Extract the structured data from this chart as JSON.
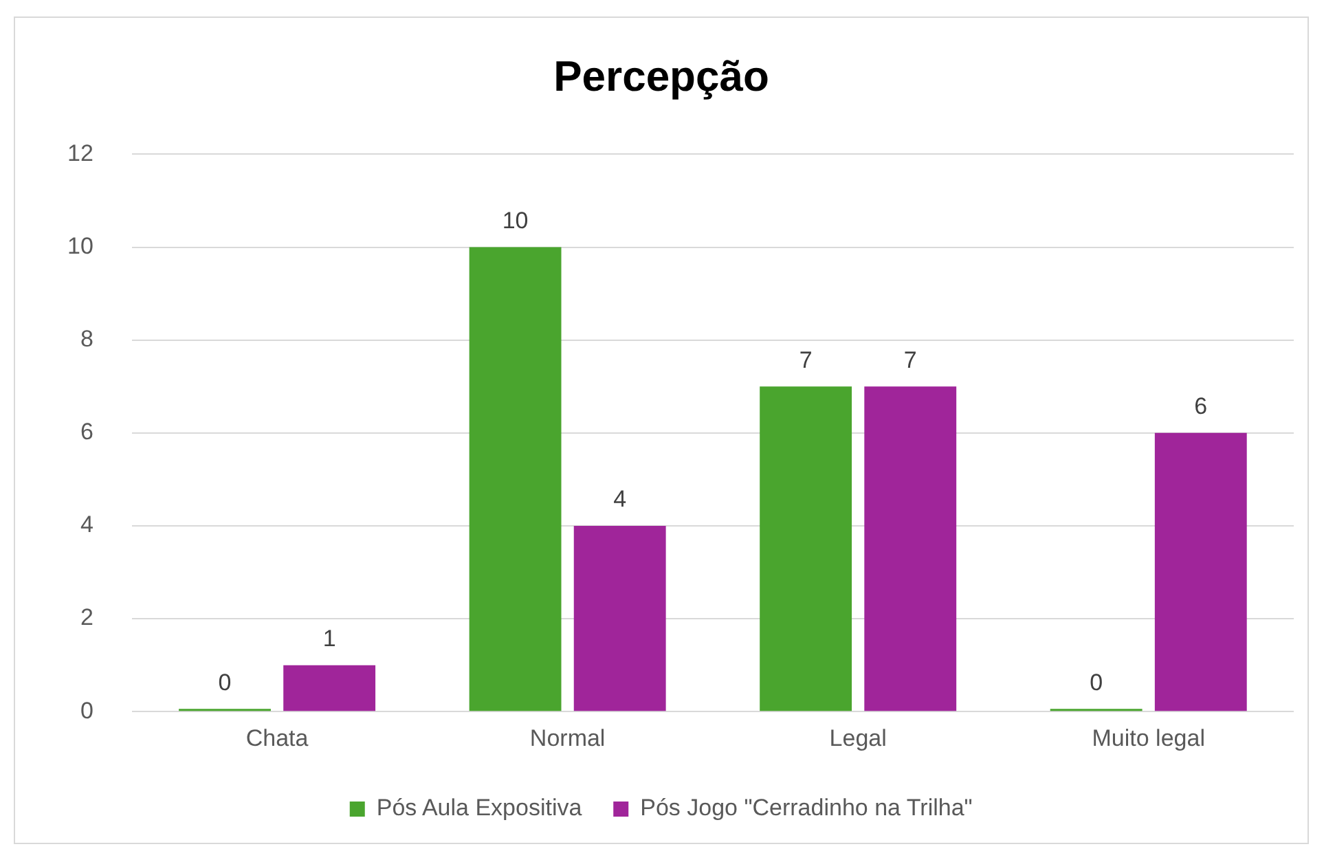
{
  "chart_data": {
    "type": "bar",
    "title": "Percepção",
    "categories": [
      "Chata",
      "Normal",
      "Legal",
      "Muito legal"
    ],
    "series": [
      {
        "name": "Pós Aula Expositiva",
        "color": "#4aa52e",
        "values": [
          0,
          10,
          7,
          0
        ]
      },
      {
        "name": "Pós Jogo \"Cerradinho na Trilha\"",
        "color": "#a0259a",
        "values": [
          1,
          4,
          7,
          6
        ]
      }
    ],
    "ylim": [
      0,
      12
    ],
    "yticks": [
      0,
      2,
      4,
      6,
      8,
      10,
      12
    ],
    "grid": "y",
    "legend": "bottom",
    "data_labels": true
  }
}
